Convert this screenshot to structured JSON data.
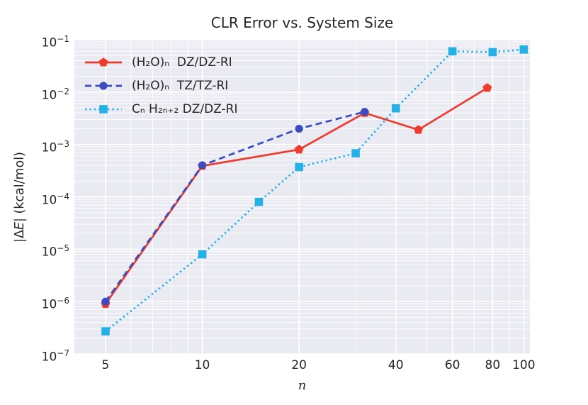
{
  "title": "CLR Error vs. System Size",
  "x_axis": {
    "label": "n",
    "scale": "log",
    "ticks": [
      {
        "label": "5",
        "value": 5
      },
      {
        "label": "10",
        "value": 10
      },
      {
        "label": "20",
        "value": 20
      },
      {
        "label": "40",
        "value": 40
      },
      {
        "label": "60",
        "value": 60
      },
      {
        "label": "80",
        "value": 80
      },
      {
        "label": "100",
        "value": 100
      }
    ]
  },
  "y_axis": {
    "label_parts": [
      "|Δ",
      "E",
      "| (kcal/mol)"
    ],
    "scale": "log",
    "ticks": [
      {
        "base": "10",
        "exp": "−1",
        "value": 0.1
      },
      {
        "base": "10",
        "exp": "−2",
        "value": 0.01
      },
      {
        "base": "10",
        "exp": "−3",
        "value": 0.001
      },
      {
        "base": "10",
        "exp": "−4",
        "value": 0.0001
      },
      {
        "base": "10",
        "exp": "−5",
        "value": 1e-05
      },
      {
        "base": "10",
        "exp": "−6",
        "value": 1e-06
      },
      {
        "base": "10",
        "exp": "−7",
        "value": 1e-07
      }
    ]
  },
  "colors": {
    "red_series": "#ee3b2f",
    "blue_series": "#3b4cc0",
    "cyan_series": "#24b1e8",
    "plot_background": "#eaeaf2",
    "gridline": "#ffffff",
    "text": "#262626"
  },
  "chart_data": {
    "type": "line",
    "title": "CLR Error vs. System Size",
    "xlabel": "n",
    "ylabel": "|ΔE| (kcal/mol)",
    "x_scale": "log",
    "y_scale": "log",
    "xlim": [
      4.0,
      104.5
    ],
    "ylim": [
      1e-07,
      0.1
    ],
    "grid": "major+minor",
    "legend_position": "upper-left",
    "legend_frame": false,
    "series": [
      {
        "name": "(H₂O)ₙ  DZ/DZ-RI",
        "color": "#ee3b2f",
        "line": "solid",
        "marker": "pentagon",
        "x": [
          5,
          10,
          20,
          32,
          47,
          77
        ],
        "y": [
          9e-07,
          0.00039,
          0.0008,
          0.004,
          0.0019,
          0.012
        ]
      },
      {
        "name": "(H₂O)ₙ  TZ/TZ-RI",
        "color": "#3b4cc0",
        "line": "dashed",
        "marker": "circle",
        "x": [
          5,
          10,
          20,
          32
        ],
        "y": [
          1e-06,
          0.0004,
          0.002,
          0.0042
        ]
      },
      {
        "name": "Cₙ H₂ₙ₊₂ DZ/DZ-RI",
        "color": "#24b1e8",
        "line": "dotted",
        "marker": "square",
        "x": [
          5,
          10,
          15,
          20,
          30,
          40,
          60,
          80,
          100
        ],
        "y": [
          2.7e-07,
          8e-06,
          8e-05,
          0.00037,
          0.00068,
          0.0049,
          0.06,
          0.058,
          0.065
        ]
      }
    ],
    "x_minor_gridlines": [
      6,
      7,
      8,
      9,
      30,
      50,
      70,
      90
    ]
  }
}
